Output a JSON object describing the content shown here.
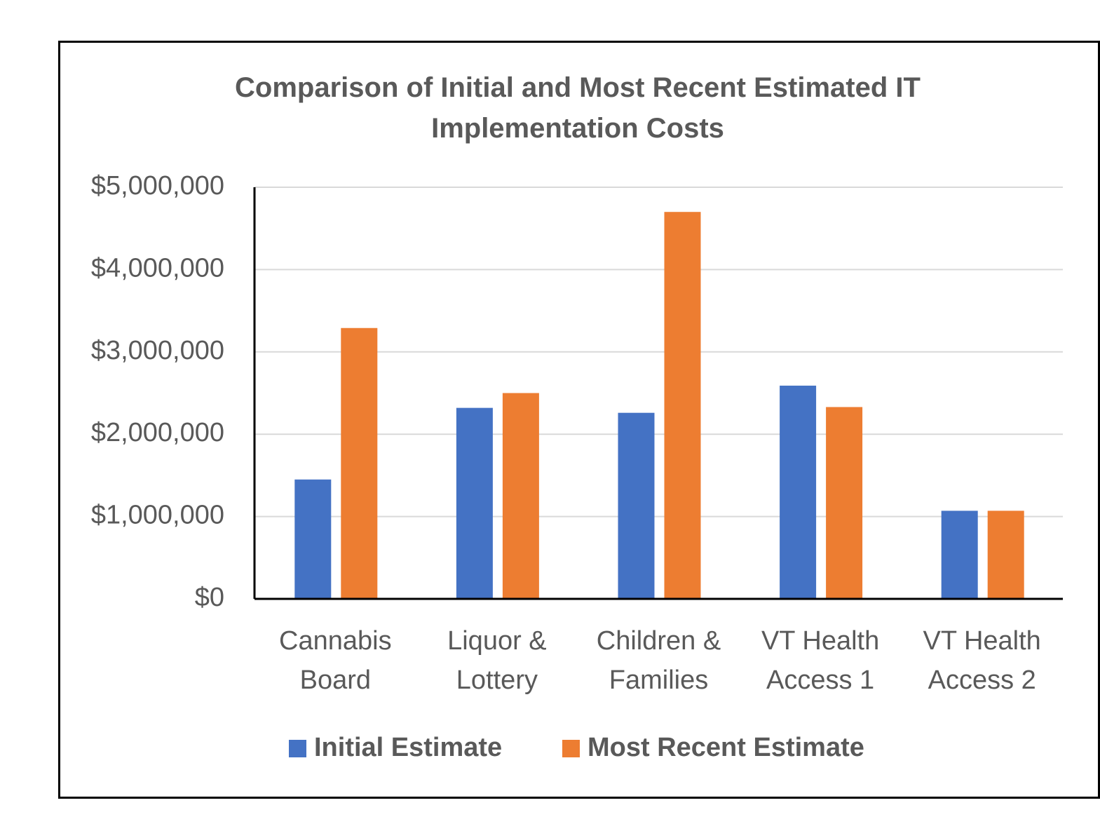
{
  "chart_data": {
    "type": "bar",
    "title": "Comparison of Initial and Most Recent Estimated IT Implementation Costs",
    "categories": [
      "Cannabis Board",
      "Liquor & Lottery",
      "Children & Families",
      "VT Health Access 1",
      "VT Health Access 2"
    ],
    "series": [
      {
        "name": "Initial Estimate",
        "color": "#4472c4",
        "values": [
          1450000,
          2320000,
          2260000,
          2590000,
          1070000
        ]
      },
      {
        "name": "Most Recent Estimate",
        "color": "#ed7d31",
        "values": [
          3290000,
          2500000,
          4700000,
          2330000,
          1070000
        ]
      }
    ],
    "ylim": [
      0,
      5000000
    ],
    "yticks": [
      {
        "value": 0,
        "label": "$0"
      },
      {
        "value": 1000000,
        "label": "$1,000,000"
      },
      {
        "value": 2000000,
        "label": "$2,000,000"
      },
      {
        "value": 3000000,
        "label": "$3,000,000"
      },
      {
        "value": 4000000,
        "label": "$4,000,000"
      },
      {
        "value": 5000000,
        "label": "$5,000,000"
      }
    ],
    "grid": true,
    "legend": "bottom"
  }
}
